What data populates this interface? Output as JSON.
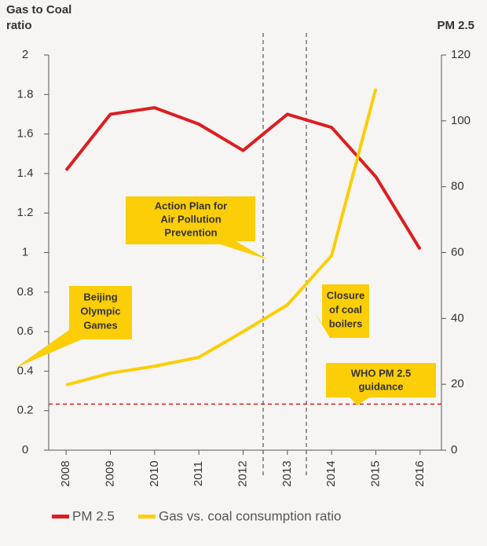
{
  "chart_data": {
    "type": "line",
    "y_title": [
      "Gas to Coal",
      "ratio"
    ],
    "y2_title": "PM 2.5",
    "categories": [
      "2008",
      "2009",
      "2010",
      "2011",
      "2012",
      "2013",
      "2014",
      "2015",
      "2016"
    ],
    "series": [
      {
        "name": "PM 2.5",
        "color": "#dd1d21",
        "axis": "y2",
        "values": [
          85,
          102,
          104,
          99,
          91,
          102,
          98,
          83,
          61
        ]
      },
      {
        "name": "Gas vs. coal consumption ratio",
        "color": "#fbce07",
        "axis": "y",
        "values": [
          0.33,
          0.39,
          0.425,
          0.47,
          0.6,
          0.735,
          0.985,
          1.83,
          null
        ]
      }
    ],
    "ylim": [
      0,
      2
    ],
    "yticks": [
      0,
      0.2,
      0.4,
      0.6,
      0.8,
      1,
      1.2,
      1.4,
      1.6,
      1.8,
      2
    ],
    "y2lim": [
      0,
      120
    ],
    "y2ticks": [
      0,
      20,
      40,
      60,
      80,
      100,
      120
    ],
    "reference_line": {
      "axis": "y2",
      "value": 14,
      "color": "#dd1d21"
    },
    "annotations": [
      [
        "Action Plan for",
        "Air Pollution",
        "Prevention"
      ],
      [
        "Beijing",
        "Olympic",
        "Games"
      ],
      [
        "Closure",
        "of coal",
        "boilers"
      ],
      [
        "WHO PM 2.5",
        "guidance"
      ]
    ]
  }
}
